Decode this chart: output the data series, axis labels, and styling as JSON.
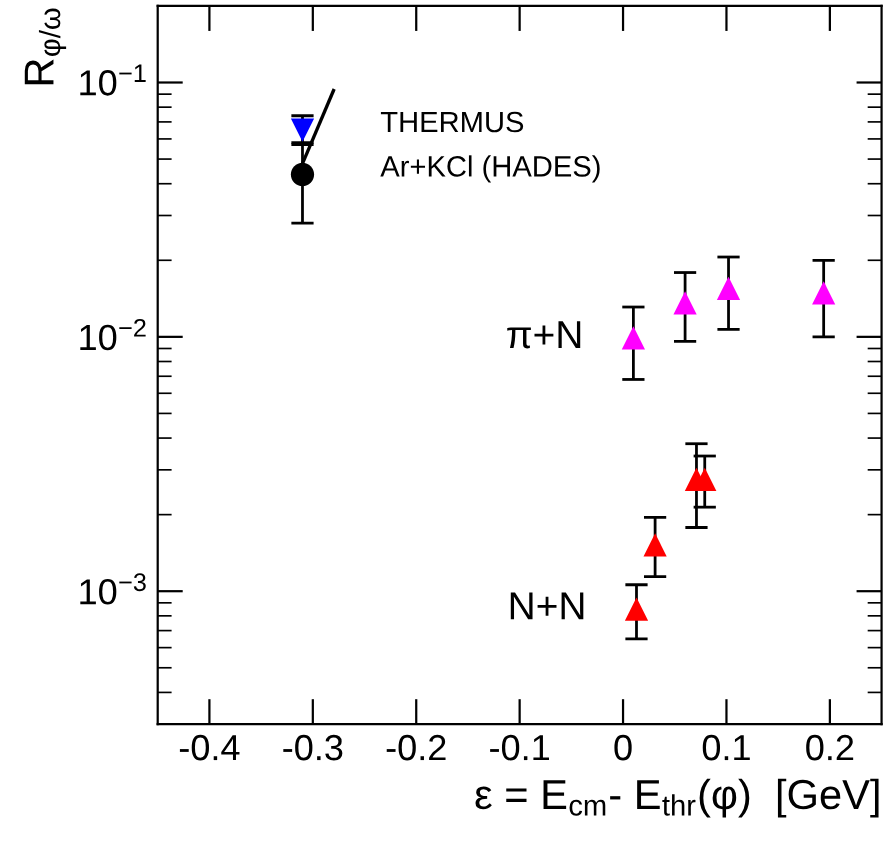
{
  "chart_data": {
    "type": "scatter",
    "xlabel": "ε = E$_{cm}$- E$_{thr}$(φ)  [GeV]",
    "ylabel": "R$_{φ/ω}$",
    "log": "y",
    "xlim": [
      -0.45,
      0.25
    ],
    "xticks": [
      -0.4,
      -0.3,
      -0.2,
      -0.1,
      0,
      0.1,
      0.2
    ],
    "ylim": [
      0.0003,
      0.2
    ],
    "yticks": [
      {
        "value": 0.001,
        "label": "10$^{−3}$"
      },
      {
        "value": 0.01,
        "label": "10$^{−2}$"
      },
      {
        "value": 0.1,
        "label": "10$^{−1}$"
      }
    ],
    "grid": false,
    "legend": false,
    "series": [
      {
        "name": "THERMUS",
        "color": "#0000ff",
        "marker": "triangle_down",
        "x": [
          -0.31
        ],
        "values": [
          0.065
        ],
        "errors": [
          [
            0.057,
            0.074
          ]
        ]
      },
      {
        "name": "Ar+KCl (HADES)",
        "color": "#000000",
        "marker": "circle",
        "x": [
          -0.31
        ],
        "values": [
          0.0435
        ],
        "errors": [
          [
            0.028,
            0.058
          ]
        ]
      },
      {
        "type": "line",
        "color": "#000000",
        "marker": "none",
        "x": [
          -0.31,
          -0.28
        ],
        "values": [
          0.048,
          0.093
        ]
      },
      {
        "name": "π+N",
        "color": "#ff00ff",
        "marker": "triangle",
        "x": [
          0.01,
          0.06,
          0.102,
          0.194
        ],
        "values": [
          0.0099,
          0.0136,
          0.0155,
          0.0149
        ],
        "errors": [
          [
            0.0068,
            0.0131
          ],
          [
            0.0096,
            0.0179
          ],
          [
            0.0107,
            0.0206
          ],
          [
            0.01,
            0.02
          ]
        ]
      },
      {
        "name": "N+N",
        "color": "#ff0000",
        "marker": "triangle",
        "x": [
          0.013,
          0.031,
          0.071,
          0.079
        ],
        "values": [
          0.00085,
          0.00152,
          0.00275,
          0.00275
        ],
        "errors": [
          [
            0.00065,
            0.00106
          ],
          [
            0.00114,
            0.00195
          ],
          [
            0.00178,
            0.0038
          ],
          [
            0.00214,
            0.0034
          ]
        ]
      }
    ]
  }
}
